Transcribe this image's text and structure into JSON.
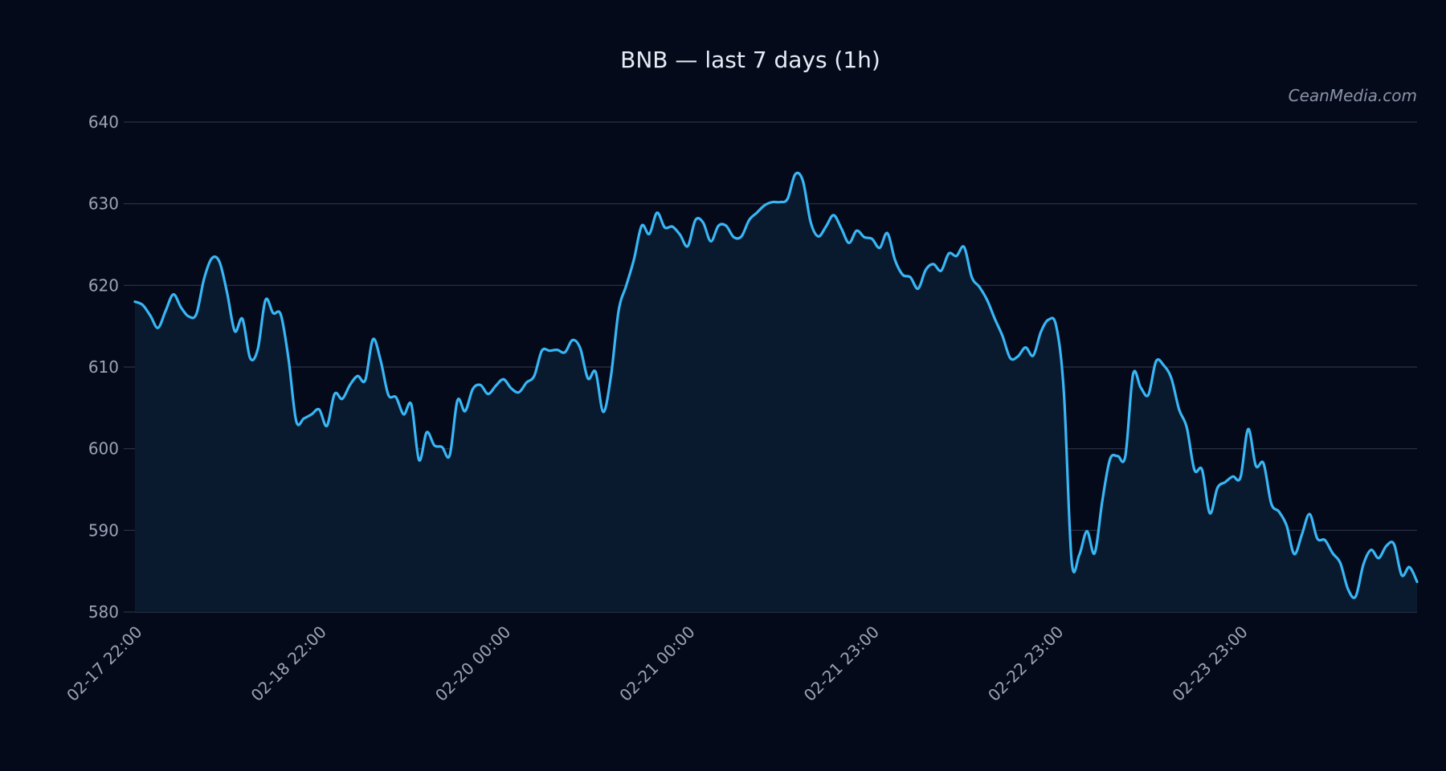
{
  "chart_data": {
    "type": "area",
    "title": "BNB — last 7 days (1h)",
    "watermark": "CeanMedia.com",
    "xlabel": "",
    "ylabel": "",
    "ylim": [
      580,
      640
    ],
    "y_ticks": [
      580,
      590,
      600,
      610,
      620,
      630,
      640
    ],
    "x_tick_labels": [
      "02-17 22:00",
      "02-18 22:00",
      "02-20 00:00",
      "02-21 00:00",
      "02-21 23:00",
      "02-22 23:00",
      "02-23 23:00"
    ],
    "grid": true,
    "legend": "none",
    "colors": {
      "background": "#050a1b",
      "line": "#38b6f5",
      "fill": "#0a1a2e",
      "grid": "#2b3345"
    },
    "series": [
      {
        "values": [
          618.0,
          617.6,
          616.3,
          614.8,
          616.9,
          618.9,
          617.3,
          616.2,
          616.5,
          620.8,
          623.3,
          622.9,
          619.1,
          614.4,
          615.9,
          611.1,
          612.2,
          618.2,
          616.6,
          616.4,
          611.0,
          603.4,
          603.7,
          604.2,
          604.8,
          602.8,
          606.7,
          606.1,
          607.8,
          608.9,
          608.4,
          613.4,
          610.8,
          606.6,
          606.3,
          604.2,
          605.4,
          598.6,
          602.0,
          600.4,
          600.2,
          599.2,
          605.9,
          604.6,
          607.3,
          607.8,
          606.7,
          607.7,
          608.5,
          607.4,
          606.9,
          608.1,
          608.9,
          612.0,
          612.0,
          612.1,
          611.8,
          613.3,
          612.3,
          608.6,
          609.4,
          604.5,
          608.9,
          616.9,
          620.0,
          623.2,
          627.3,
          626.3,
          628.9,
          627.1,
          627.2,
          626.2,
          624.8,
          628.0,
          627.7,
          625.4,
          627.3,
          627.3,
          625.9,
          626.0,
          628.0,
          628.9,
          629.8,
          630.2,
          630.2,
          630.6,
          633.6,
          632.8,
          627.8,
          626.0,
          627.2,
          628.6,
          627.0,
          625.2,
          626.7,
          625.9,
          625.7,
          624.6,
          626.4,
          623.1,
          621.3,
          621.0,
          619.6,
          621.9,
          622.6,
          621.8,
          623.9,
          623.6,
          624.7,
          621.0,
          619.8,
          618.2,
          615.9,
          613.8,
          611.1,
          611.3,
          612.4,
          611.4,
          614.3,
          615.8,
          615.0,
          606.8,
          586.3,
          587.0,
          589.9,
          587.2,
          593.6,
          598.7,
          599.1,
          599.1,
          609.1,
          607.5,
          606.6,
          610.7,
          610.2,
          608.6,
          604.8,
          602.6,
          597.4,
          597.4,
          592.1,
          595.2,
          595.9,
          596.6,
          596.5,
          602.4,
          597.9,
          598.2,
          593.3,
          592.3,
          590.6,
          587.1,
          589.5,
          592.0,
          589.0,
          588.8,
          587.2,
          586.0,
          582.8,
          581.9,
          585.8,
          587.6,
          586.6,
          588.1,
          588.3,
          584.5,
          585.5,
          583.7
        ]
      }
    ]
  }
}
